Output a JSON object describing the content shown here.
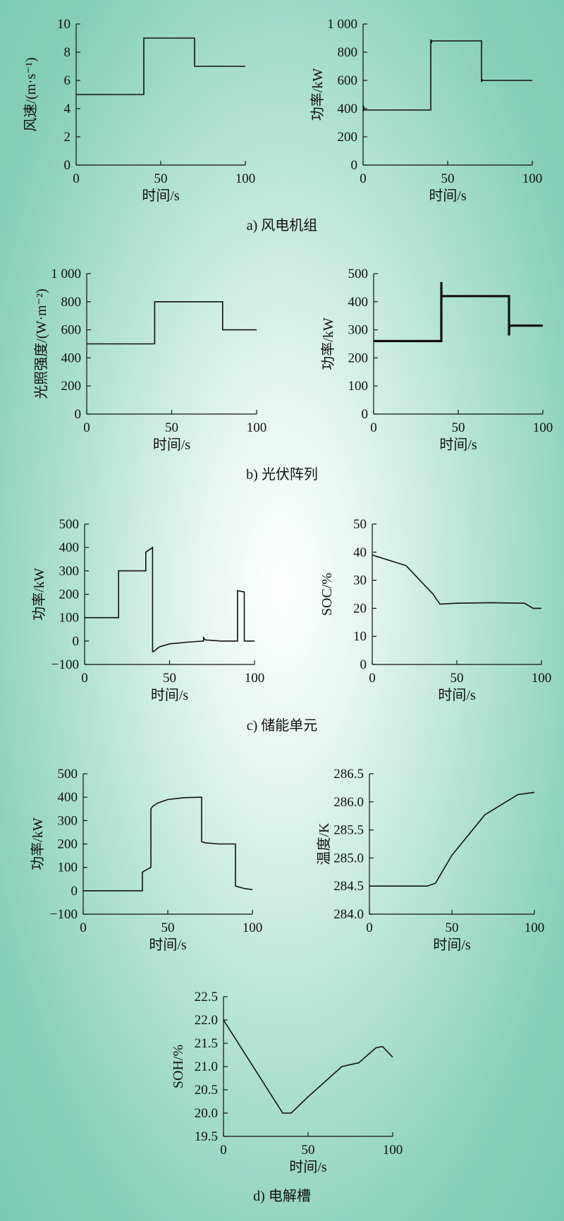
{
  "figure": {
    "background_colors": [
      "#ffffff",
      "#7ccab2"
    ],
    "line_color": "#111111"
  },
  "captions": {
    "a": "a) 风电机组",
    "b": "b) 光伏阵列",
    "c": "c) 储能单元",
    "d": "d) 电解槽"
  },
  "chart_data": [
    {
      "id": "wind-speed",
      "type": "line",
      "group": "a",
      "xlabel": "时间/s",
      "ylabel": "风速/(m·s⁻¹)",
      "xlim": [
        0,
        100
      ],
      "ylim": [
        0,
        10
      ],
      "xticks": [
        0,
        50,
        100
      ],
      "yticks": [
        0,
        2,
        4,
        6,
        8,
        10
      ],
      "ytick_labels": [
        "0",
        "2",
        "4",
        "6",
        "8",
        "10"
      ],
      "series": [
        {
          "x": [
            0,
            40,
            40,
            70,
            70,
            100
          ],
          "y": [
            5,
            5,
            9,
            9,
            7,
            7
          ]
        }
      ]
    },
    {
      "id": "wind-power",
      "type": "line",
      "group": "a",
      "xlabel": "时间/s",
      "ylabel": "功率/kW",
      "xlim": [
        0,
        100
      ],
      "ylim": [
        0,
        1000
      ],
      "xticks": [
        0,
        50,
        100
      ],
      "yticks": [
        0,
        200,
        400,
        600,
        800,
        1000
      ],
      "ytick_labels": [
        "0",
        "200",
        "400",
        "600",
        "800",
        "1 000"
      ],
      "series": [
        {
          "x": [
            0,
            0.3,
            0.6,
            40,
            40,
            40.4,
            40.8,
            70,
            70,
            70.4,
            70.8,
            100
          ],
          "y": [
            380,
            420,
            390,
            390,
            890,
            870,
            880,
            880,
            590,
            605,
            600,
            600
          ]
        }
      ]
    },
    {
      "id": "pv-irradiance",
      "type": "line",
      "group": "b",
      "xlabel": "时间/s",
      "ylabel": "光照强度/(W·m⁻²)",
      "xlim": [
        0,
        100
      ],
      "ylim": [
        0,
        1000
      ],
      "xticks": [
        0,
        50,
        100
      ],
      "yticks": [
        0,
        200,
        400,
        600,
        800,
        1000
      ],
      "ytick_labels": [
        "0",
        "200",
        "400",
        "600",
        "800",
        "1 000"
      ],
      "series": [
        {
          "x": [
            0,
            40,
            40,
            80,
            80,
            100
          ],
          "y": [
            500,
            500,
            800,
            800,
            600,
            600
          ]
        }
      ]
    },
    {
      "id": "pv-power",
      "type": "line",
      "group": "b",
      "xlabel": "时间/s",
      "ylabel": "功率/kW",
      "xlim": [
        0,
        100
      ],
      "ylim": [
        0,
        500
      ],
      "xticks": [
        0,
        50,
        100
      ],
      "yticks": [
        0,
        100,
        200,
        300,
        400,
        500
      ],
      "ytick_labels": [
        "0",
        "100",
        "200",
        "300",
        "400",
        "500"
      ],
      "thick": true,
      "series": [
        {
          "x": [
            0,
            40,
            40,
            40.1,
            40.1,
            80,
            80,
            80.1,
            80.1,
            100
          ],
          "y": [
            260,
            260,
            470,
            420,
            420,
            420,
            280,
            315,
            315,
            315
          ]
        }
      ]
    },
    {
      "id": "storage-power",
      "type": "line",
      "group": "c",
      "xlabel": "时间/s",
      "ylabel": "功率/kW",
      "xlim": [
        0,
        100
      ],
      "ylim": [
        -100,
        500
      ],
      "xticks": [
        0,
        50,
        100
      ],
      "yticks": [
        -100,
        0,
        100,
        200,
        300,
        400,
        500
      ],
      "ytick_labels": [
        "−100",
        "0",
        "100",
        "200",
        "300",
        "400",
        "500"
      ],
      "series": [
        {
          "x": [
            0,
            20,
            20,
            36,
            36,
            40,
            40,
            40.5,
            44,
            50,
            60,
            70,
            70,
            71,
            80,
            90,
            90,
            94,
            94,
            100
          ],
          "y": [
            100,
            100,
            300,
            300,
            380,
            400,
            -45,
            -45,
            -25,
            -12,
            -5,
            0,
            15,
            5,
            0,
            0,
            215,
            210,
            0,
            0
          ]
        }
      ]
    },
    {
      "id": "storage-soc",
      "type": "line",
      "group": "c",
      "xlabel": "时间/s",
      "ylabel": "SOC/%",
      "xlim": [
        0,
        100
      ],
      "ylim": [
        0,
        50
      ],
      "xticks": [
        0,
        50,
        100
      ],
      "yticks": [
        0,
        10,
        20,
        30,
        40,
        50
      ],
      "ytick_labels": [
        "0",
        "10",
        "20",
        "30",
        "40",
        "50"
      ],
      "series": [
        {
          "x": [
            0,
            20,
            36,
            40,
            50,
            70,
            90,
            95,
            100
          ],
          "y": [
            39,
            35.2,
            25,
            21.5,
            21.8,
            22,
            21.8,
            20,
            20
          ]
        }
      ]
    },
    {
      "id": "electrolyzer-power",
      "type": "line",
      "group": "d",
      "xlabel": "时间/s",
      "ylabel": "功率/kW",
      "xlim": [
        0,
        100
      ],
      "ylim": [
        -100,
        500
      ],
      "xticks": [
        0,
        50,
        100
      ],
      "yticks": [
        -100,
        0,
        100,
        200,
        300,
        400,
        500
      ],
      "ytick_labels": [
        "−100",
        "0",
        "100",
        "200",
        "300",
        "400",
        "500"
      ],
      "series": [
        {
          "x": [
            0,
            35,
            35,
            40,
            40,
            41,
            44,
            50,
            60,
            70,
            70,
            72,
            80,
            90,
            90,
            95,
            100
          ],
          "y": [
            0,
            0,
            80,
            100,
            350,
            360,
            375,
            390,
            398,
            400,
            210,
            205,
            200,
            200,
            20,
            10,
            5
          ]
        }
      ]
    },
    {
      "id": "electrolyzer-temperature",
      "type": "line",
      "group": "d",
      "xlabel": "时间/s",
      "ylabel": "温度/K",
      "xlim": [
        0,
        100
      ],
      "ylim": [
        284.0,
        286.5
      ],
      "xticks": [
        0,
        50,
        100
      ],
      "yticks": [
        284.0,
        284.5,
        285.0,
        285.5,
        286.0,
        286.5
      ],
      "ytick_labels": [
        "284.0",
        "284.5",
        "285.0",
        "285.5",
        "286.0",
        "286.5"
      ],
      "series": [
        {
          "x": [
            0,
            35,
            40,
            50,
            70,
            90,
            100
          ],
          "y": [
            284.5,
            284.5,
            284.55,
            285.05,
            285.77,
            286.13,
            286.17
          ]
        }
      ]
    },
    {
      "id": "electrolyzer-soh",
      "type": "line",
      "group": "d",
      "xlabel": "时间/s",
      "ylabel": "SOH/%",
      "xlim": [
        0,
        100
      ],
      "ylim": [
        19.5,
        22.5
      ],
      "xticks": [
        0,
        50,
        100
      ],
      "yticks": [
        19.5,
        20.0,
        20.5,
        21.0,
        21.5,
        22.0,
        22.5
      ],
      "ytick_labels": [
        "19.5",
        "20.0",
        "20.5",
        "21.0",
        "21.5",
        "22.0",
        "22.5"
      ],
      "series": [
        {
          "x": [
            0,
            35,
            40,
            50,
            70,
            80,
            90,
            94,
            100
          ],
          "y": [
            22,
            20,
            20,
            20.35,
            21,
            21.08,
            21.4,
            21.43,
            21.2
          ]
        }
      ]
    }
  ]
}
